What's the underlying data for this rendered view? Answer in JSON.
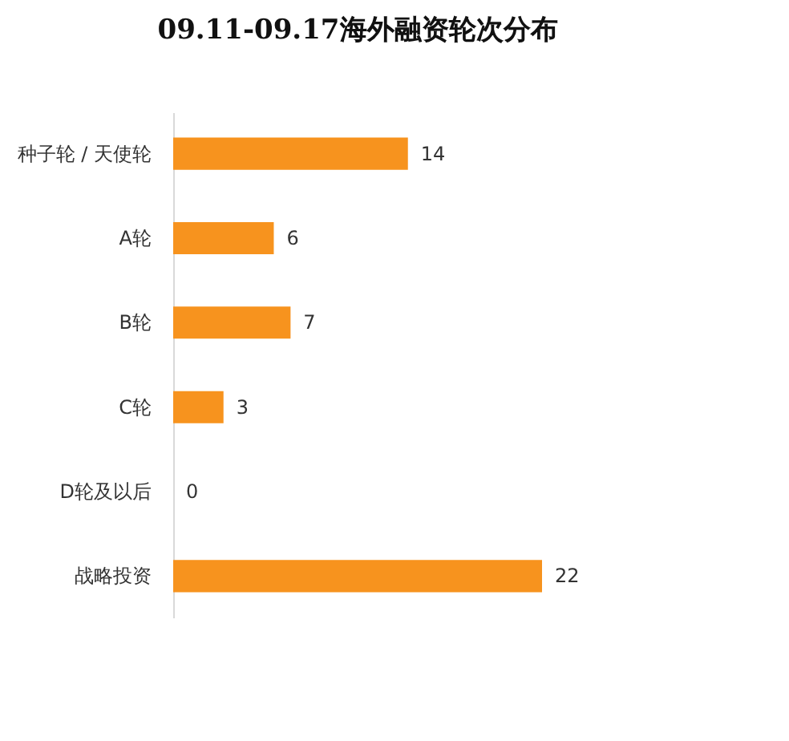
{
  "chart_data": {
    "type": "bar",
    "orientation": "horizontal",
    "title": "09.11-09.17海外融资轮次分布",
    "categories": [
      "种子轮 / 天使轮",
      "A轮",
      "B轮",
      "C轮",
      "D轮及以后",
      "战略投资"
    ],
    "values": [
      14,
      6,
      7,
      3,
      0,
      22
    ],
    "color": "#f7931e",
    "data_labels": true
  }
}
